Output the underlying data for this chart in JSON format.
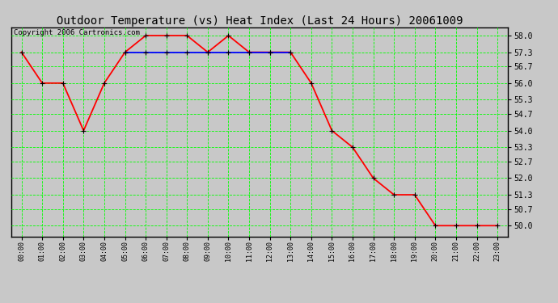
{
  "title": "Outdoor Temperature (vs) Heat Index (Last 24 Hours) 20061009",
  "copyright_text": "Copyright 2006 Cartronics.com",
  "temp_hours": [
    0,
    1,
    2,
    3,
    4,
    5,
    6,
    7,
    8,
    9,
    10,
    11,
    12,
    13,
    14,
    15,
    16,
    17,
    18,
    19,
    20,
    21,
    22,
    23
  ],
  "temp_values": [
    57.3,
    56.0,
    56.0,
    54.0,
    56.0,
    57.3,
    58.0,
    58.0,
    58.0,
    57.3,
    58.0,
    57.3,
    57.3,
    57.3,
    56.0,
    54.0,
    53.3,
    52.0,
    51.3,
    51.3,
    50.0,
    50.0,
    50.0,
    50.0
  ],
  "heat_hours": [
    5,
    6,
    7,
    8,
    9,
    10,
    11,
    12,
    13
  ],
  "heat_values": [
    57.3,
    57.3,
    57.3,
    57.3,
    57.3,
    57.3,
    57.3,
    57.3,
    57.3
  ],
  "temp_color": "#FF0000",
  "heat_color": "#0000FF",
  "bg_color": "#C8C8C8",
  "plot_bg_color": "#C8C8C8",
  "grid_color": "#00FF00",
  "ytick_labels": [
    "58.0",
    "57.3",
    "56.7",
    "56.0",
    "55.3",
    "54.7",
    "54.0",
    "53.3",
    "52.7",
    "52.0",
    "51.3",
    "50.7",
    "50.0"
  ],
  "ytick_values": [
    58.0,
    57.3,
    56.7,
    56.0,
    55.3,
    54.7,
    54.0,
    53.3,
    52.7,
    52.0,
    51.3,
    50.7,
    50.0
  ],
  "ymin": 49.55,
  "ymax": 58.35,
  "title_fontsize": 10,
  "copyright_fontsize": 6.5,
  "marker": "+",
  "marker_size": 5,
  "line_width": 1.3
}
